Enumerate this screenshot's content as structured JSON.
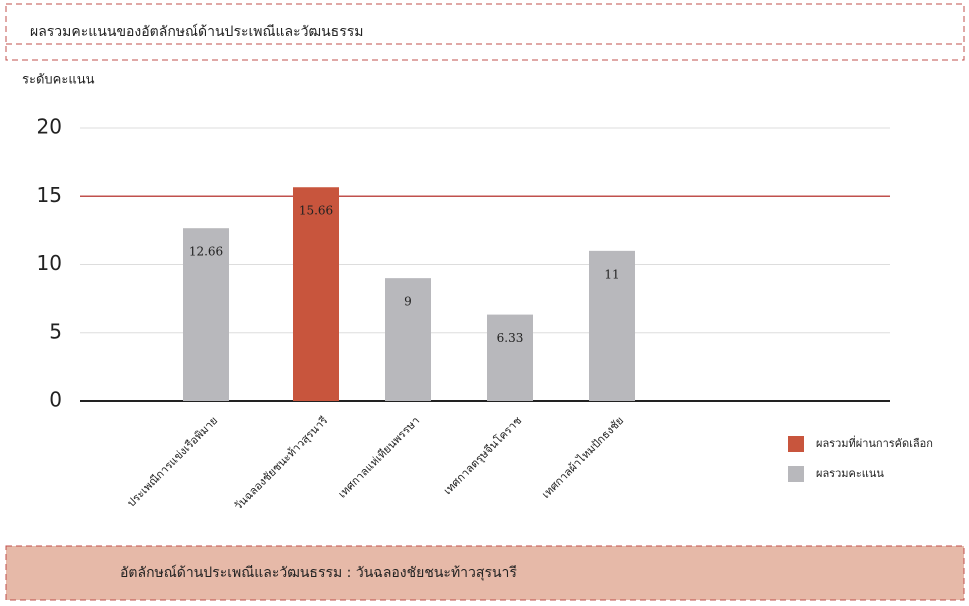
{
  "chart_data": {
    "type": "bar",
    "title": "ผลรวมคะแนนของอัตลักษณ์ด้านประเพณีและวัฒนธรรม",
    "y_label": "ระดับคะแนน",
    "categories": [
      "ประเพณีการแข่งเรือพิมาย",
      "วันฉลองชัยชนะท้าวสุรนารี",
      "เทศกาลแห่เทียนพรรษา",
      "เทศกาลตรุษจีนโคราช",
      "เทศกาลผ้าไหมปักธงชัย"
    ],
    "values": [
      12.66,
      15.66,
      9,
      6.33,
      11
    ],
    "colors": [
      "#b8b8bc",
      "#c8553d",
      "#b8b8bc",
      "#b8b8bc",
      "#b8b8bc"
    ],
    "threshold": {
      "value": 15,
      "color": "#c0504d"
    },
    "legend": [
      {
        "name": "ผลรวมที่ผ่านการคัดเลือก",
        "color": "#c8553d"
      },
      {
        "name": "ผลรวมคะแนน",
        "color": "#b8b8bc"
      }
    ],
    "ylim": [
      0,
      20
    ],
    "yticks": [
      0,
      5,
      10,
      15,
      20
    ],
    "grid": true
  },
  "footer": "อัตลักษณ์ด้านประเพณีและวัฒนธรรม : วันฉลองชัยชนะท้าวสุรนารี"
}
